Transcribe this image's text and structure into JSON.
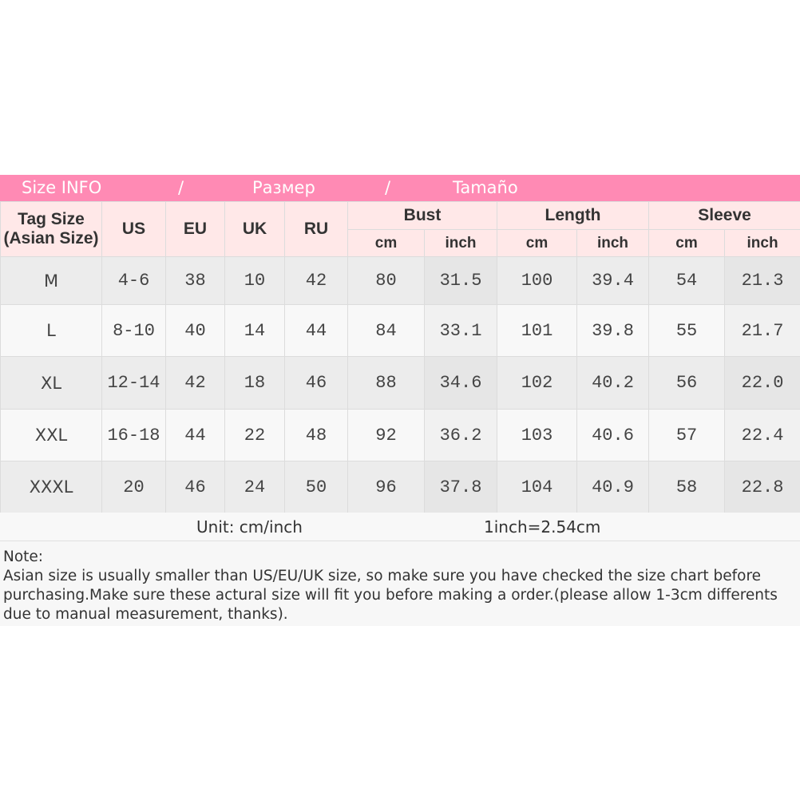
{
  "title": {
    "part1": "Size INFO",
    "sep": "/",
    "part2": "Размер",
    "part3": "Tamaño"
  },
  "headers": {
    "tag": "Tag Size",
    "tag2": "(Asian Size)",
    "us": "US",
    "eu": "EU",
    "uk": "UK",
    "ru": "RU",
    "bust": "Bust",
    "length": "Length",
    "sleeve": "Sleeve",
    "cm": "cm",
    "inch": "inch"
  },
  "rows": [
    [
      "M",
      "4-6",
      "38",
      "10",
      "42",
      "80",
      "31.5",
      "100",
      "39.4",
      "54",
      "21.3"
    ],
    [
      "L",
      "8-10",
      "40",
      "14",
      "44",
      "84",
      "33.1",
      "101",
      "39.8",
      "55",
      "21.7"
    ],
    [
      "XL",
      "12-14",
      "42",
      "18",
      "46",
      "88",
      "34.6",
      "102",
      "40.2",
      "56",
      "22.0"
    ],
    [
      "XXL",
      "16-18",
      "44",
      "22",
      "48",
      "92",
      "36.2",
      "103",
      "40.6",
      "57",
      "22.4"
    ],
    [
      "XXXL",
      "20",
      "46",
      "24",
      "50",
      "96",
      "37.8",
      "104",
      "40.9",
      "58",
      "22.8"
    ]
  ],
  "unit": {
    "label": "Unit: cm/inch",
    "conversion": "1inch=2.54cm"
  },
  "note": {
    "heading": "Note:",
    "text": "Asian size is usually smaller than US/EU/UK size, so make sure you have checked the size chart before purchasing.Make sure these actural size will fit you before making a order.(please allow 1-3cm differents due to manual measurement, thanks)."
  },
  "colors": {
    "title_bar": "#ff8ab4",
    "header_bg": "#ffe8e8"
  }
}
